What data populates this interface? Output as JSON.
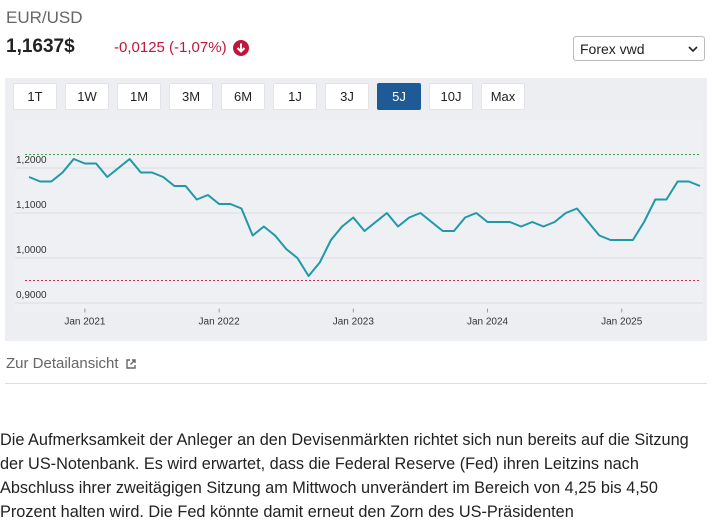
{
  "header": {
    "pair": "EUR/USD",
    "price": "1,1637$",
    "change": "-0,0125 (-1,07%)",
    "source_select": "Forex vwd"
  },
  "range_buttons": [
    "1T",
    "1W",
    "1M",
    "3M",
    "6M",
    "1J",
    "3J",
    "5J",
    "10J",
    "Max"
  ],
  "active_range_index": 7,
  "chart_data": {
    "type": "line",
    "color": "#1f98a8",
    "grid": true,
    "x": [
      "2020-08",
      "2020-09",
      "2020-10",
      "2020-11",
      "2020-12",
      "2021-01",
      "2021-02",
      "2021-03",
      "2021-04",
      "2021-05",
      "2021-06",
      "2021-07",
      "2021-08",
      "2021-09",
      "2021-10",
      "2021-11",
      "2021-12",
      "2022-01",
      "2022-02",
      "2022-03",
      "2022-04",
      "2022-05",
      "2022-06",
      "2022-07",
      "2022-08",
      "2022-09",
      "2022-10",
      "2022-11",
      "2022-12",
      "2023-01",
      "2023-02",
      "2023-03",
      "2023-04",
      "2023-05",
      "2023-06",
      "2023-07",
      "2023-08",
      "2023-09",
      "2023-10",
      "2023-11",
      "2023-12",
      "2024-01",
      "2024-02",
      "2024-03",
      "2024-04",
      "2024-05",
      "2024-06",
      "2024-07",
      "2024-08",
      "2024-09",
      "2024-10",
      "2024-11",
      "2024-12",
      "2025-01",
      "2025-02",
      "2025-03",
      "2025-04",
      "2025-05",
      "2025-06",
      "2025-07",
      "2025-08"
    ],
    "values": [
      1.18,
      1.17,
      1.17,
      1.19,
      1.22,
      1.21,
      1.21,
      1.18,
      1.2,
      1.22,
      1.19,
      1.19,
      1.18,
      1.16,
      1.16,
      1.13,
      1.14,
      1.12,
      1.12,
      1.11,
      1.05,
      1.07,
      1.05,
      1.02,
      1.0,
      0.96,
      0.99,
      1.04,
      1.07,
      1.09,
      1.06,
      1.08,
      1.1,
      1.07,
      1.09,
      1.1,
      1.08,
      1.06,
      1.06,
      1.09,
      1.1,
      1.08,
      1.08,
      1.08,
      1.07,
      1.08,
      1.07,
      1.08,
      1.1,
      1.11,
      1.08,
      1.05,
      1.04,
      1.04,
      1.04,
      1.08,
      1.13,
      1.13,
      1.17,
      1.17,
      1.16
    ],
    "xlim": [
      "2020-08",
      "2025-08"
    ],
    "xticks": [
      {
        "value": "2021-01",
        "label": "Jan 2021"
      },
      {
        "value": "2022-01",
        "label": "Jan 2022"
      },
      {
        "value": "2023-01",
        "label": "Jan 2023"
      },
      {
        "value": "2024-01",
        "label": "Jan 2024"
      },
      {
        "value": "2025-01",
        "label": "Jan 2025"
      }
    ],
    "ylim": [
      0.89,
      1.29
    ],
    "yticks": [
      {
        "value": 0.9,
        "label": "0,9000"
      },
      {
        "value": 1.0,
        "label": "1,0000"
      },
      {
        "value": 1.1,
        "label": "1,1000"
      },
      {
        "value": 1.2,
        "label": "1,2000"
      }
    ],
    "reference_lines": [
      {
        "value": 1.23,
        "color": "#3d9a4e"
      },
      {
        "value": 0.95,
        "color": "#c0304c"
      }
    ]
  },
  "detail_link": "Zur Detailansicht",
  "article": {
    "paragraph": "Die Aufmerksamkeit der Anleger an den Devisenmärkten richtet sich nun bereits auf die Sitzung der US-Notenbank. Es wird erwartet, dass die Federal Reserve (Fed) ihren Leitzins nach Abschluss ihrer zweitägigen Sitzung am Mittwoch unverändert im Bereich von 4,25 bis 4,50 Prozent halten wird. Die Fed könnte damit erneut den Zorn des US-Präsidenten"
  }
}
